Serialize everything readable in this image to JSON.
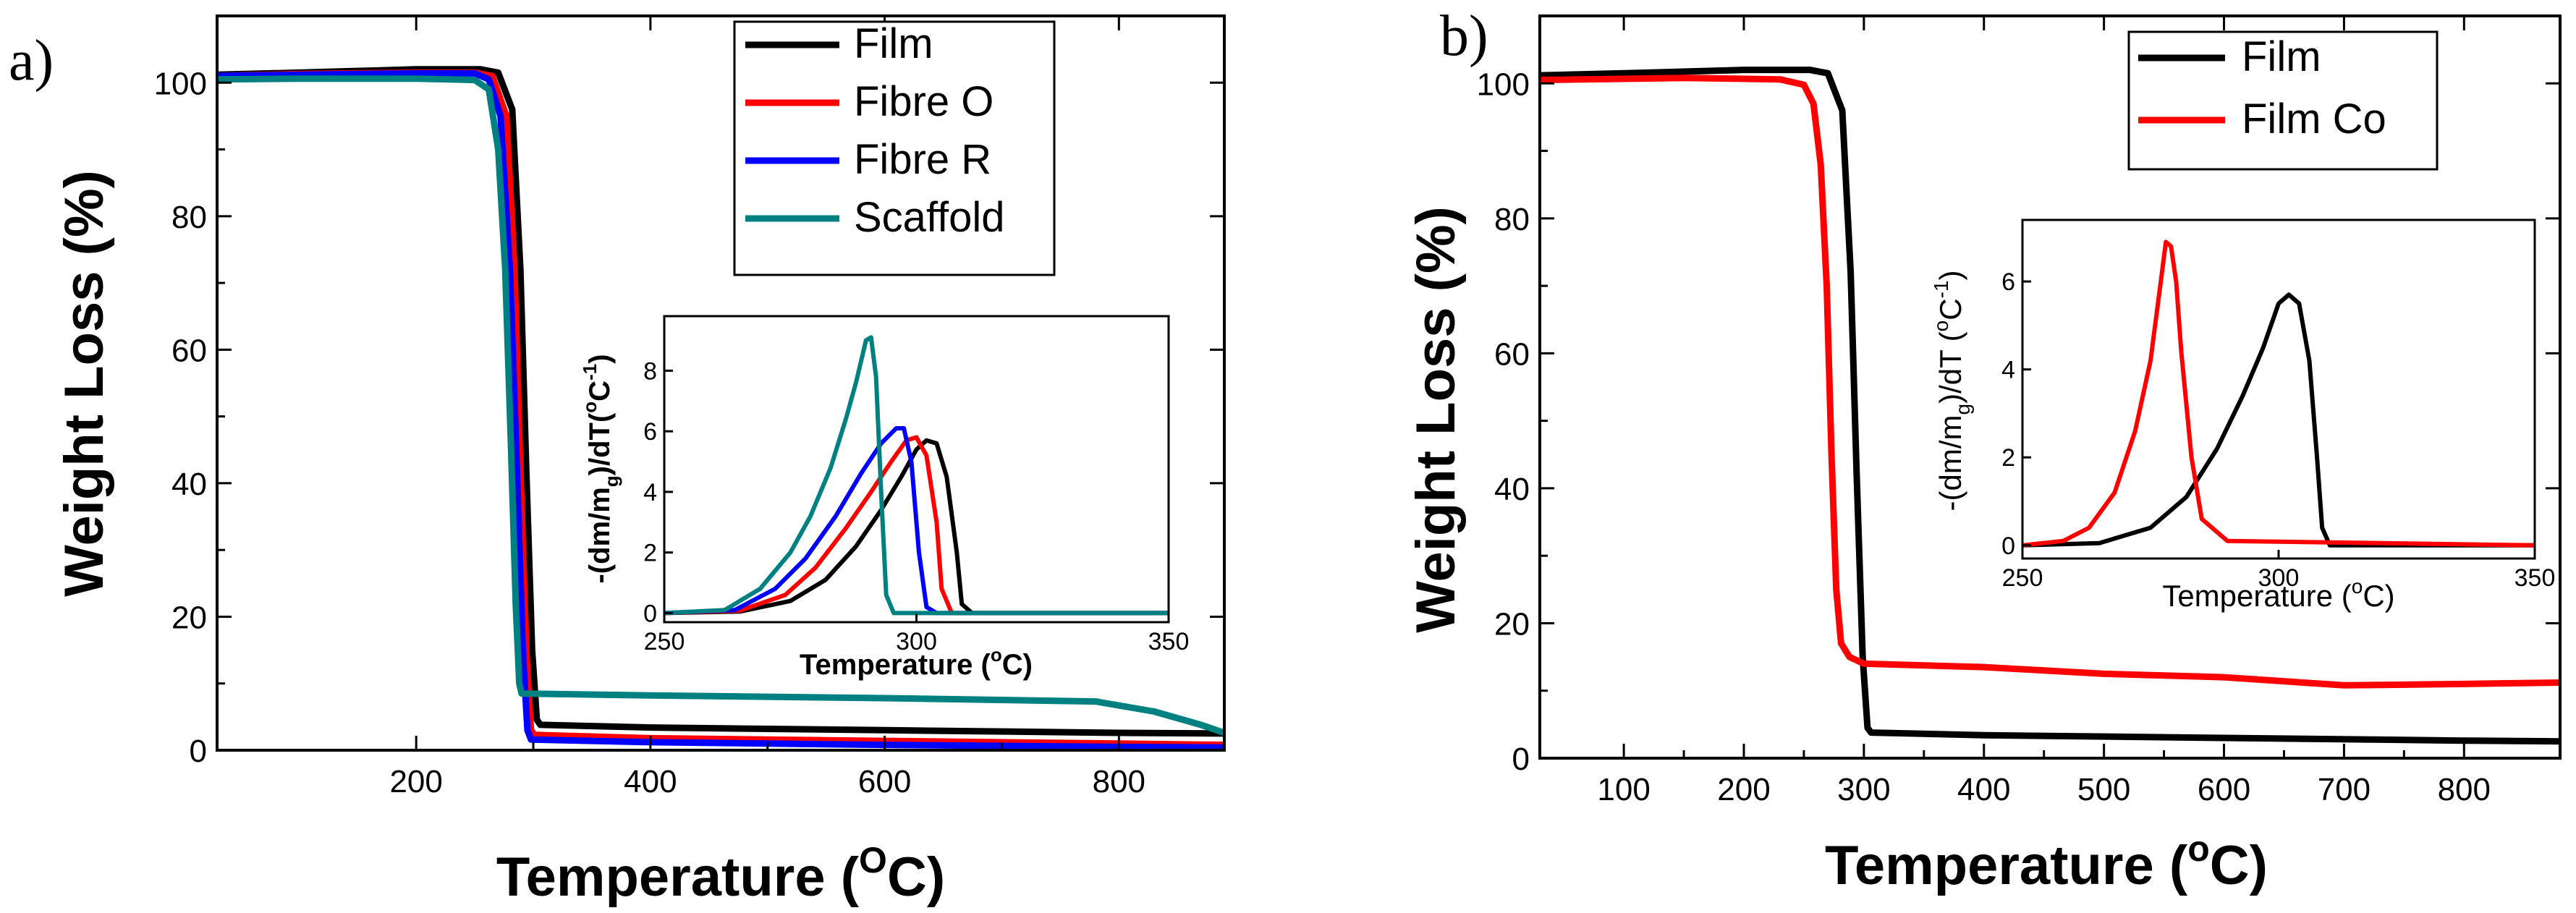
{
  "chart_data": [
    {
      "type": "line",
      "panel_label": "a)",
      "xlabel_main": "Temperature (",
      "xlabel_sup": "O",
      "xlabel_unit": "C)",
      "ylabel": "Weight Loss (%)",
      "xlim": [
        30,
        890
      ],
      "ylim": [
        0,
        110
      ],
      "xticks": [
        200,
        400,
        600,
        800
      ],
      "yticks": [
        0,
        20,
        40,
        60,
        80,
        100
      ],
      "series": [
        {
          "name": "Film",
          "color": "#000000",
          "points": [
            [
              30,
              101.2
            ],
            [
              100,
              101.5
            ],
            [
              200,
              102
            ],
            [
              255,
              102
            ],
            [
              270,
              101.5
            ],
            [
              282,
              96
            ],
            [
              289,
              72
            ],
            [
              294,
              42
            ],
            [
              299,
              15
            ],
            [
              303,
              4.6
            ],
            [
              306,
              3.8
            ],
            [
              400,
              3.4
            ],
            [
              600,
              3.0
            ],
            [
              800,
              2.6
            ],
            [
              890,
              2.5
            ]
          ]
        },
        {
          "name": "Fibre O",
          "color": "#ff0000",
          "points": [
            [
              30,
              101
            ],
            [
              100,
              101.3
            ],
            [
              200,
              101.5
            ],
            [
              250,
              101.5
            ],
            [
              265,
              101
            ],
            [
              277,
              95
            ],
            [
              284,
              72
            ],
            [
              289,
              42
            ],
            [
              294,
              15
            ],
            [
              298,
              3
            ],
            [
              301,
              2.3
            ],
            [
              400,
              1.8
            ],
            [
              600,
              1.4
            ],
            [
              800,
              1.0
            ],
            [
              890,
              0.8
            ]
          ]
        },
        {
          "name": "Fibre R",
          "color": "#0000ff",
          "points": [
            [
              30,
              101
            ],
            [
              100,
              101.2
            ],
            [
              200,
              101.4
            ],
            [
              250,
              101.4
            ],
            [
              262,
              100.5
            ],
            [
              272,
              95
            ],
            [
              280,
              72
            ],
            [
              286,
              42
            ],
            [
              291,
              15
            ],
            [
              295,
              3
            ],
            [
              298,
              1.6
            ],
            [
              400,
              1.2
            ],
            [
              600,
              0.8
            ],
            [
              800,
              0.5
            ],
            [
              890,
              0.4
            ]
          ]
        },
        {
          "name": "Scaffold",
          "color": "#008080",
          "points": [
            [
              30,
              100.5
            ],
            [
              100,
              100.6
            ],
            [
              200,
              100.6
            ],
            [
              250,
              100.4
            ],
            [
              262,
              99
            ],
            [
              270,
              90
            ],
            [
              276,
              72
            ],
            [
              281,
              45
            ],
            [
              285,
              22
            ],
            [
              288,
              10
            ],
            [
              290,
              8.5
            ],
            [
              400,
              8.2
            ],
            [
              600,
              7.8
            ],
            [
              780,
              7.3
            ],
            [
              830,
              5.8
            ],
            [
              870,
              3.8
            ],
            [
              890,
              2.6
            ]
          ]
        }
      ],
      "inset": {
        "xlabel_main": "Temperature (",
        "xlabel_sup": "o",
        "xlabel_unit": "C)",
        "ylabel_prefix": "-(dm/m",
        "ylabel_sub": "g",
        "ylabel_mid": ")/dT(",
        "ylabel_sup": "o",
        "ylabel_unit": "C",
        "ylabel_sup2": "-1",
        "ylabel_end": ")",
        "xlim": [
          250,
          350
        ],
        "ylim": [
          -0.3,
          9.8
        ],
        "xticks": [
          250,
          300,
          350
        ],
        "yticks": [
          0,
          2,
          4,
          6,
          8
        ],
        "series": [
          {
            "name": "Film",
            "color": "#000000",
            "points": [
              [
                250,
                0
              ],
              [
                265,
                0.05
              ],
              [
                275,
                0.4
              ],
              [
                282,
                1.1
              ],
              [
                288,
                2.2
              ],
              [
                293,
                3.4
              ],
              [
                297,
                4.5
              ],
              [
                300,
                5.4
              ],
              [
                302,
                5.7
              ],
              [
                304,
                5.6
              ],
              [
                306,
                4.5
              ],
              [
                308,
                2
              ],
              [
                309,
                0.3
              ],
              [
                311,
                0
              ],
              [
                350,
                0
              ]
            ]
          },
          {
            "name": "Fibre O",
            "color": "#ff0000",
            "points": [
              [
                250,
                0
              ],
              [
                265,
                0.08
              ],
              [
                274,
                0.6
              ],
              [
                280,
                1.5
              ],
              [
                286,
                2.8
              ],
              [
                291,
                4
              ],
              [
                295,
                5
              ],
              [
                298,
                5.7
              ],
              [
                300,
                5.8
              ],
              [
                302,
                5.2
              ],
              [
                304,
                3
              ],
              [
                305,
                0.8
              ],
              [
                307,
                0
              ],
              [
                350,
                0
              ]
            ]
          },
          {
            "name": "Fibre R",
            "color": "#0000ff",
            "points": [
              [
                250,
                0
              ],
              [
                264,
                0.1
              ],
              [
                272,
                0.8
              ],
              [
                278,
                1.8
              ],
              [
                284,
                3.2
              ],
              [
                289,
                4.6
              ],
              [
                293,
                5.6
              ],
              [
                296,
                6.1
              ],
              [
                297.5,
                6.1
              ],
              [
                299,
                5
              ],
              [
                300.5,
                2
              ],
              [
                302,
                0.2
              ],
              [
                304,
                0
              ],
              [
                350,
                0
              ]
            ]
          },
          {
            "name": "Scaffold",
            "color": "#008080",
            "points": [
              [
                250,
                0
              ],
              [
                262,
                0.1
              ],
              [
                269,
                0.8
              ],
              [
                275,
                2
              ],
              [
                279,
                3.2
              ],
              [
                283,
                4.8
              ],
              [
                286,
                6.4
              ],
              [
                288,
                7.6
              ],
              [
                290,
                9
              ],
              [
                291,
                9.1
              ],
              [
                292,
                7.8
              ],
              [
                293,
                4
              ],
              [
                294,
                0.6
              ],
              [
                295.5,
                0
              ],
              [
                350,
                0
              ]
            ]
          }
        ]
      }
    },
    {
      "type": "line",
      "panel_label": "b)",
      "xlabel_main": "Temperature (",
      "xlabel_sup": "o",
      "xlabel_unit": "C)",
      "ylabel": "Weight Loss (%)",
      "xlim": [
        30,
        880
      ],
      "ylim": [
        0,
        110
      ],
      "xticks": [
        100,
        200,
        300,
        400,
        500,
        600,
        700,
        800
      ],
      "yticks": [
        0,
        20,
        40,
        60,
        80,
        100
      ],
      "series": [
        {
          "name": "Film",
          "color": "#000000",
          "points": [
            [
              30,
              101.2
            ],
            [
              100,
              101.5
            ],
            [
              200,
              102
            ],
            [
              255,
              102
            ],
            [
              270,
              101.5
            ],
            [
              282,
              96
            ],
            [
              289,
              72
            ],
            [
              294,
              42
            ],
            [
              299,
              15
            ],
            [
              303,
              4.5
            ],
            [
              306,
              3.8
            ],
            [
              400,
              3.4
            ],
            [
              600,
              3.0
            ],
            [
              800,
              2.6
            ],
            [
              880,
              2.5
            ]
          ]
        },
        {
          "name": "Film Co",
          "color": "#ff0000",
          "points": [
            [
              30,
              100.5
            ],
            [
              150,
              100.8
            ],
            [
              230,
              100.6
            ],
            [
              250,
              99.8
            ],
            [
              258,
              97
            ],
            [
              264,
              88
            ],
            [
              269,
              70
            ],
            [
              273,
              45
            ],
            [
              277,
              25
            ],
            [
              281,
              17
            ],
            [
              288,
              15
            ],
            [
              300,
              14
            ],
            [
              400,
              13.5
            ],
            [
              500,
              12.5
            ],
            [
              600,
              12
            ],
            [
              700,
              10.8
            ],
            [
              800,
              11
            ],
            [
              880,
              11.2
            ]
          ]
        }
      ],
      "inset": {
        "xlabel_main": "Temperature (",
        "xlabel_sup": "o",
        "xlabel_unit": "C)",
        "ylabel_prefix": "-(dm/m",
        "ylabel_sub": "g",
        "ylabel_mid": ")/dT (",
        "ylabel_sup": "o",
        "ylabel_unit": "C",
        "ylabel_sup2": "-1",
        "ylabel_end": ")",
        "xlim": [
          250,
          350
        ],
        "ylim": [
          -0.3,
          7.4
        ],
        "xticks": [
          250,
          300,
          350
        ],
        "yticks": [
          0,
          2,
          4,
          6
        ],
        "series": [
          {
            "name": "Film",
            "color": "#000000",
            "points": [
              [
                250,
                0
              ],
              [
                265,
                0.05
              ],
              [
                275,
                0.4
              ],
              [
                282,
                1.1
              ],
              [
                288,
                2.2
              ],
              [
                293,
                3.4
              ],
              [
                297,
                4.5
              ],
              [
                300,
                5.5
              ],
              [
                302,
                5.7
              ],
              [
                304,
                5.5
              ],
              [
                306,
                4.2
              ],
              [
                307.5,
                2
              ],
              [
                308.5,
                0.4
              ],
              [
                310,
                0
              ],
              [
                350,
                0
              ]
            ]
          },
          {
            "name": "Film Co",
            "color": "#ff0000",
            "points": [
              [
                250,
                0
              ],
              [
                258,
                0.1
              ],
              [
                263,
                0.4
              ],
              [
                268,
                1.2
              ],
              [
                272,
                2.6
              ],
              [
                275,
                4.2
              ],
              [
                277,
                6
              ],
              [
                278,
                6.9
              ],
              [
                279,
                6.8
              ],
              [
                280,
                6
              ],
              [
                281,
                4.4
              ],
              [
                283,
                2
              ],
              [
                285,
                0.6
              ],
              [
                290,
                0.1
              ],
              [
                350,
                0
              ]
            ]
          }
        ]
      }
    }
  ]
}
